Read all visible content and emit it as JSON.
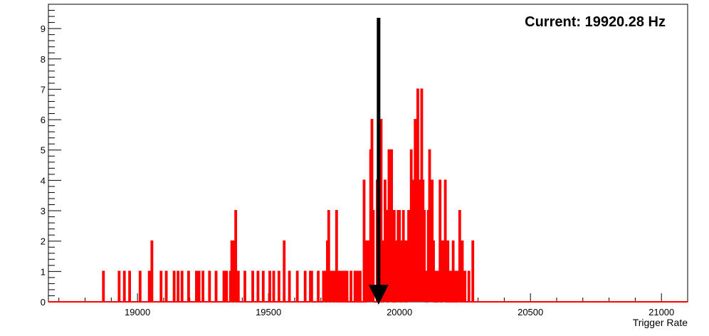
{
  "chart_data": {
    "type": "histogram",
    "title": "",
    "xlabel": "Trigger Rate",
    "ylabel": "",
    "xlim": [
      18660,
      21100
    ],
    "ylim": [
      0,
      9.8
    ],
    "xticks": [
      19000,
      19500,
      20000,
      20500,
      21000
    ],
    "xtick_labels": [
      "19000",
      "19500",
      "20000",
      "20500",
      "21000"
    ],
    "yticks": [
      0,
      1,
      2,
      3,
      4,
      5,
      6,
      7,
      8,
      9
    ],
    "ytick_labels": [
      "0",
      "1",
      "2",
      "3",
      "4",
      "5",
      "6",
      "7",
      "8",
      "9"
    ],
    "grid": false,
    "legend": "none",
    "annotation": {
      "text": "Current: 19920.28 Hz",
      "marker_x": 19920.28
    },
    "series": [
      {
        "color": "#ff0000",
        "points": [
          [
            18870,
            1
          ],
          [
            18930,
            1
          ],
          [
            18950,
            1
          ],
          [
            18970,
            1
          ],
          [
            19010,
            1
          ],
          [
            19045,
            1
          ],
          [
            19055,
            2
          ],
          [
            19090,
            1
          ],
          [
            19110,
            1
          ],
          [
            19140,
            1
          ],
          [
            19155,
            1
          ],
          [
            19170,
            1
          ],
          [
            19195,
            1
          ],
          [
            19225,
            1
          ],
          [
            19235,
            1
          ],
          [
            19250,
            1
          ],
          [
            19275,
            1
          ],
          [
            19300,
            1
          ],
          [
            19330,
            1
          ],
          [
            19340,
            1
          ],
          [
            19355,
            1
          ],
          [
            19360,
            2
          ],
          [
            19370,
            2
          ],
          [
            19375,
            3
          ],
          [
            19385,
            1
          ],
          [
            19410,
            1
          ],
          [
            19440,
            1
          ],
          [
            19460,
            1
          ],
          [
            19480,
            1
          ],
          [
            19505,
            1
          ],
          [
            19520,
            1
          ],
          [
            19540,
            1
          ],
          [
            19560,
            2
          ],
          [
            19580,
            1
          ],
          [
            19610,
            1
          ],
          [
            19640,
            1
          ],
          [
            19660,
            1
          ],
          [
            19665,
            1
          ],
          [
            19690,
            1
          ],
          [
            19710,
            1
          ],
          [
            19715,
            1
          ],
          [
            19725,
            2
          ],
          [
            19730,
            3
          ],
          [
            19740,
            1
          ],
          [
            19745,
            1
          ],
          [
            19755,
            1
          ],
          [
            19760,
            3
          ],
          [
            19770,
            1
          ],
          [
            19780,
            1
          ],
          [
            19790,
            1
          ],
          [
            19800,
            1
          ],
          [
            19815,
            1
          ],
          [
            19830,
            1
          ],
          [
            19840,
            1
          ],
          [
            19850,
            1
          ],
          [
            19865,
            4
          ],
          [
            19875,
            2
          ],
          [
            19880,
            1
          ],
          [
            19885,
            2
          ],
          [
            19890,
            5
          ],
          [
            19895,
            6
          ],
          [
            19900,
            3
          ],
          [
            19915,
            4
          ],
          [
            19925,
            3
          ],
          [
            19930,
            6
          ],
          [
            19940,
            2
          ],
          [
            19945,
            4
          ],
          [
            19950,
            3
          ],
          [
            19960,
            5
          ],
          [
            19965,
            4
          ],
          [
            19970,
            5
          ],
          [
            19980,
            3
          ],
          [
            19990,
            2
          ],
          [
            19995,
            3
          ],
          [
            20000,
            3
          ],
          [
            20010,
            2
          ],
          [
            20015,
            3
          ],
          [
            20020,
            2
          ],
          [
            20030,
            2
          ],
          [
            20035,
            3
          ],
          [
            20040,
            1
          ],
          [
            20045,
            5
          ],
          [
            20050,
            3
          ],
          [
            20055,
            4
          ],
          [
            20060,
            6
          ],
          [
            20065,
            4
          ],
          [
            20070,
            7
          ],
          [
            20075,
            3
          ],
          [
            20080,
            4
          ],
          [
            20085,
            7
          ],
          [
            20090,
            4
          ],
          [
            20095,
            3
          ],
          [
            20100,
            1
          ],
          [
            20110,
            3
          ],
          [
            20115,
            5
          ],
          [
            20120,
            3
          ],
          [
            20125,
            4
          ],
          [
            20130,
            2
          ],
          [
            20140,
            1
          ],
          [
            20150,
            1
          ],
          [
            20155,
            4
          ],
          [
            20165,
            2
          ],
          [
            20170,
            1
          ],
          [
            20175,
            4
          ],
          [
            20185,
            2
          ],
          [
            20195,
            1
          ],
          [
            20205,
            2
          ],
          [
            20215,
            1
          ],
          [
            20225,
            1
          ],
          [
            20230,
            3
          ],
          [
            20240,
            2
          ],
          [
            20250,
            1
          ],
          [
            20265,
            1
          ],
          [
            20280,
            2
          ]
        ]
      }
    ]
  }
}
